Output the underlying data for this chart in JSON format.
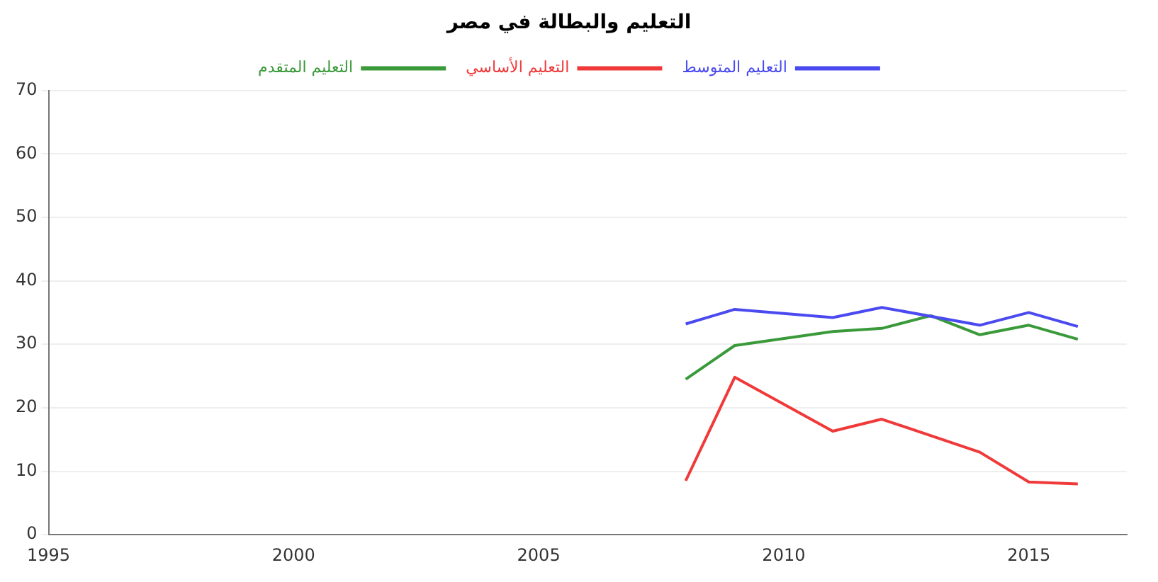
{
  "chart_data": {
    "type": "line",
    "title": "التعليم والبطالة في مصر",
    "xlim": [
      1995,
      2017
    ],
    "xticks": [
      1995,
      2000,
      2005,
      2010,
      2015
    ],
    "ylim": [
      0,
      70
    ],
    "yticks": [
      0,
      10,
      20,
      30,
      40,
      50,
      60,
      70
    ],
    "grid": "y",
    "legend": "top",
    "marker": "none",
    "line_style": "solid",
    "series": [
      {
        "name": "التعليم المتوسط",
        "color": "#4a4af0",
        "x": [
          2008,
          2009,
          2011,
          2012,
          2014,
          2015,
          2016
        ],
        "values": [
          33.2,
          35.5,
          34.2,
          35.8,
          33,
          35,
          32.8
        ]
      },
      {
        "name": "التعليم الأساسي",
        "color": "#f03a3a",
        "x": [
          2008,
          2009,
          2011,
          2012,
          2014,
          2015,
          2016
        ],
        "values": [
          8.5,
          24.8,
          16.3,
          18.2,
          13,
          8.3,
          8
        ]
      },
      {
        "name": "التعليم المتقدم",
        "color": "#3a9a3a",
        "x": [
          2008,
          2009,
          2011,
          2012,
          2013,
          2014,
          2015,
          2016
        ],
        "values": [
          24.5,
          29.8,
          32,
          32.5,
          34.5,
          31.5,
          33,
          30.8
        ]
      }
    ]
  }
}
